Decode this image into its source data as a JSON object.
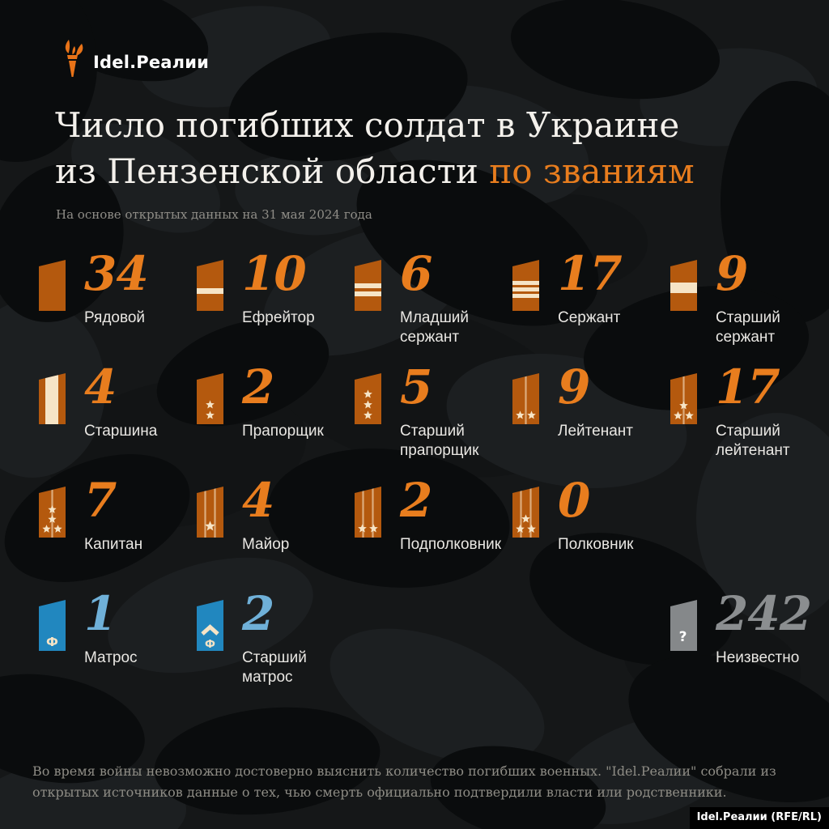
{
  "brand": {
    "logo_text": "Idel.Реалии",
    "credit": "Idel.Реалии (RFE/RL)",
    "torch_icon": "torch-icon"
  },
  "header": {
    "title_line1": "Число погибших солдат в Украине",
    "title_line2_plain": "из Пензенской области ",
    "title_line2_accent": "по званиям",
    "subtitle": "На основе открытых данных на 31 мая 2024 года"
  },
  "footer": {
    "note": "Во время войны невозможно достоверно выяснить количество погибших военных. \"Idel.Реалии\" собрали из открытых источников данные о тех, чью смерть официально подтвердили власти или родственники."
  },
  "colors": {
    "accent_orange": "#e87d1e",
    "insignia_orange": "#b4590e",
    "stripe_cream": "#f6e4c6",
    "insignia_blue": "#2187bf",
    "number_blue": "#6fb0d8",
    "insignia_gray": "#85888a",
    "number_gray": "#8b8e90",
    "background": "#151718"
  },
  "ranks": [
    {
      "label": "Рядовой",
      "value": "34",
      "row": 1,
      "col": 1,
      "insignia": "plain",
      "color": "orange"
    },
    {
      "label": "Ефрейтор",
      "value": "10",
      "row": 1,
      "col": 2,
      "insignia": "h1",
      "color": "orange"
    },
    {
      "label": "Младший сержант",
      "value": "6",
      "row": 1,
      "col": 3,
      "insignia": "h2",
      "color": "orange"
    },
    {
      "label": "Сержант",
      "value": "17",
      "row": 1,
      "col": 4,
      "insignia": "h3",
      "color": "orange"
    },
    {
      "label": "Старший сержант",
      "value": "9",
      "row": 1,
      "col": 5,
      "insignia": "hthick",
      "color": "orange"
    },
    {
      "label": "Старшина",
      "value": "4",
      "row": 2,
      "col": 1,
      "insignia": "vband",
      "color": "orange"
    },
    {
      "label": "Прапорщик",
      "value": "2",
      "row": 2,
      "col": 2,
      "insignia": "stars2",
      "color": "orange"
    },
    {
      "label": "Старший прапорщик",
      "value": "5",
      "row": 2,
      "col": 3,
      "insignia": "stars3",
      "color": "orange"
    },
    {
      "label": "Лейтенант",
      "value": "9",
      "row": 2,
      "col": 4,
      "insignia": "lt2",
      "color": "orange"
    },
    {
      "label": "Старший лейтенант",
      "value": "17",
      "row": 2,
      "col": 5,
      "insignia": "lt3",
      "color": "orange"
    },
    {
      "label": "Капитан",
      "value": "7",
      "row": 3,
      "col": 1,
      "insignia": "cpt4",
      "color": "orange"
    },
    {
      "label": "Майор",
      "value": "4",
      "row": 3,
      "col": 2,
      "insignia": "maj1",
      "color": "orange"
    },
    {
      "label": "Подполковник",
      "value": "2",
      "row": 3,
      "col": 3,
      "insignia": "ltcol2",
      "color": "orange"
    },
    {
      "label": "Полковник",
      "value": "0",
      "row": 3,
      "col": 4,
      "insignia": "col3",
      "color": "orange"
    },
    {
      "label": "Матрос",
      "value": "1",
      "row": 4,
      "col": 1,
      "insignia": "sailor",
      "color": "blue"
    },
    {
      "label": "Старший матрос",
      "value": "2",
      "row": 4,
      "col": 2,
      "insignia": "sr_sailor",
      "color": "blue"
    },
    {
      "label": "Неизвестно",
      "value": "242",
      "row": 4,
      "col": 5,
      "insignia": "unknown",
      "color": "gray"
    }
  ],
  "chart_data": {
    "type": "table",
    "title": "Число погибших солдат в Украине из Пензенской области по званиям",
    "subtitle": "На основе открытых данных на 31 мая 2024 года",
    "categories": [
      "Рядовой",
      "Ефрейтор",
      "Младший сержант",
      "Сержант",
      "Старший сержант",
      "Старшина",
      "Прапорщик",
      "Старший прапорщик",
      "Лейтенант",
      "Старший лейтенант",
      "Капитан",
      "Майор",
      "Подполковник",
      "Полковник",
      "Матрос",
      "Старший матрос",
      "Неизвестно"
    ],
    "values": [
      34,
      10,
      6,
      17,
      9,
      4,
      2,
      5,
      9,
      17,
      7,
      4,
      2,
      0,
      1,
      2,
      242
    ],
    "legend_position": "none",
    "layout": "pictogram grid, 5 columns, shoulder-board icons per rank"
  }
}
